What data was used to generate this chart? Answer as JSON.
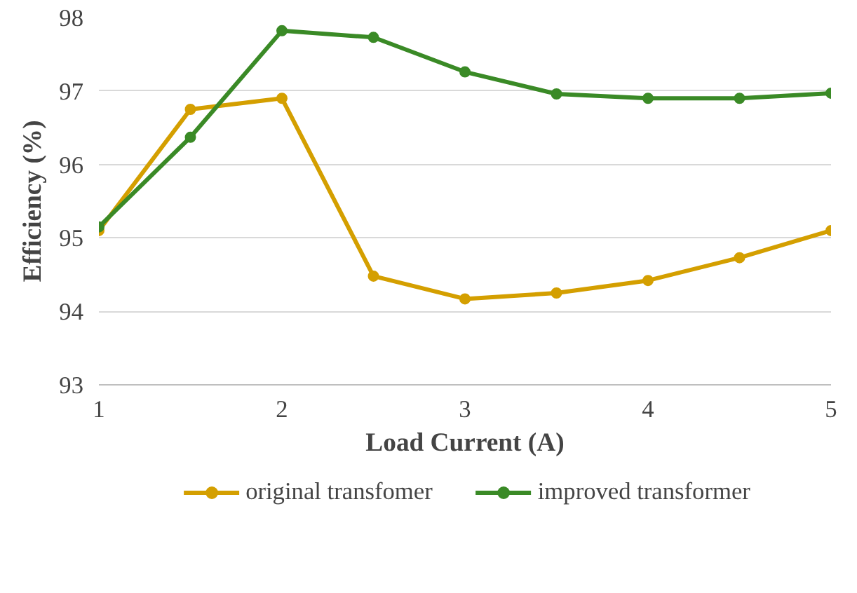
{
  "chart_data": {
    "type": "line",
    "xlabel": "Load Current (A)",
    "ylabel": "Efficiency (%)",
    "x": [
      1,
      1.5,
      2,
      2.5,
      3,
      3.5,
      4,
      4.5,
      5
    ],
    "series": [
      {
        "name": "original transfomer",
        "color": "#d49f00",
        "values": [
          95.1,
          96.75,
          96.9,
          94.48,
          94.17,
          94.25,
          94.42,
          94.73,
          95.1
        ]
      },
      {
        "name": "improved transformer",
        "color": "#3a8a26",
        "values": [
          95.15,
          96.37,
          97.82,
          97.73,
          97.26,
          96.96,
          96.9,
          96.9,
          96.97
        ]
      }
    ],
    "xlim": [
      1,
      5
    ],
    "xticks": [
      1,
      2,
      3,
      4,
      5
    ],
    "ylim": [
      93,
      98
    ],
    "yticks": [
      93,
      94,
      95,
      96,
      97,
      98
    ],
    "grid": "y",
    "legend": "bottom",
    "marker": "circle",
    "line_style": "solid"
  }
}
